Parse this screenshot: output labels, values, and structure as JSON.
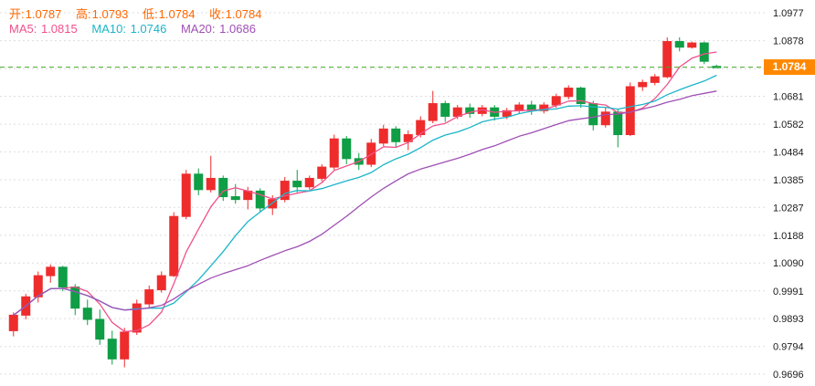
{
  "legend": {
    "open_label": "开:",
    "open_value": "1.0787",
    "high_label": "高:",
    "high_value": "1.0793",
    "low_label": "低:",
    "low_value": "1.0784",
    "close_label": "收:",
    "close_value": "1.0784"
  },
  "ma_legend": {
    "ma5_label": "MA5:",
    "ma5_value": "1.0815",
    "ma10_label": "MA10:",
    "ma10_value": "1.0746",
    "ma20_label": "MA20:",
    "ma20_value": "1.0686"
  },
  "price_badge": "1.0784",
  "chart_data": {
    "type": "candlestick",
    "title": "",
    "legend_position": "top-left",
    "grid": true,
    "x_axis": {
      "labels_visible": false
    },
    "y_axis": {
      "min": 0.9696,
      "max": 1.0977,
      "tick_labels": [
        "1.0977",
        "1.0878",
        "1.0779",
        "1.0681",
        "1.0582",
        "1.0484",
        "1.0385",
        "1.0287",
        "1.0188",
        "1.0090",
        "0.9991",
        "0.9893",
        "0.9794",
        "0.9696"
      ]
    },
    "current_price": 1.0784,
    "candles": {
      "format": "open-high-low-close",
      "ohlc": [
        [
          0.985,
          0.9915,
          0.983,
          0.9905
        ],
        [
          0.9905,
          0.998,
          0.989,
          0.997
        ],
        [
          0.997,
          1.006,
          0.995,
          1.0045
        ],
        [
          1.0045,
          1.0085,
          1.002,
          1.0075
        ],
        [
          1.0075,
          1.008,
          0.999,
          1.0005
        ],
        [
          1.0005,
          1.0015,
          0.9905,
          0.993
        ],
        [
          0.993,
          0.996,
          0.987,
          0.989
        ],
        [
          0.989,
          0.9925,
          0.98,
          0.982
        ],
        [
          0.982,
          0.985,
          0.973,
          0.975
        ],
        [
          0.975,
          0.986,
          0.972,
          0.9845
        ],
        [
          0.9845,
          0.996,
          0.9835,
          0.9945
        ],
        [
          0.9945,
          1.001,
          0.993,
          0.9995
        ],
        [
          0.9995,
          1.006,
          0.9985,
          1.0045
        ],
        [
          1.0045,
          1.027,
          1.004,
          1.0255
        ],
        [
          1.0255,
          1.042,
          1.0245,
          1.0405
        ],
        [
          1.0405,
          1.0425,
          1.033,
          1.035
        ],
        [
          1.035,
          1.047,
          1.034,
          1.039
        ],
        [
          1.039,
          1.04,
          1.031,
          1.0325
        ],
        [
          1.0325,
          1.037,
          1.03,
          1.0315
        ],
        [
          1.0315,
          1.036,
          1.028,
          1.0345
        ],
        [
          1.0345,
          1.0355,
          1.027,
          1.0285
        ],
        [
          1.0285,
          1.033,
          1.026,
          1.0315
        ],
        [
          1.0315,
          1.0395,
          1.0305,
          1.038
        ],
        [
          1.038,
          1.042,
          1.034,
          1.036
        ],
        [
          1.036,
          1.04,
          1.035,
          1.039
        ],
        [
          1.039,
          1.044,
          1.038,
          1.043
        ],
        [
          1.043,
          1.0545,
          1.042,
          1.053
        ],
        [
          1.053,
          1.054,
          1.044,
          1.046
        ],
        [
          1.046,
          1.048,
          1.042,
          1.044
        ],
        [
          1.044,
          1.053,
          1.043,
          1.0515
        ],
        [
          1.0515,
          1.058,
          1.0505,
          1.0565
        ],
        [
          1.0565,
          1.0575,
          1.05,
          1.052
        ],
        [
          1.052,
          1.056,
          1.049,
          1.0545
        ],
        [
          1.0545,
          1.061,
          1.0535,
          1.0595
        ],
        [
          1.0595,
          1.07,
          1.0585,
          1.0655
        ],
        [
          1.0655,
          1.0665,
          1.059,
          1.061
        ],
        [
          1.061,
          1.065,
          1.06,
          1.064
        ],
        [
          1.064,
          1.0655,
          1.0605,
          1.062
        ],
        [
          1.062,
          1.065,
          1.061,
          1.064
        ],
        [
          1.064,
          1.065,
          1.0595,
          1.061
        ],
        [
          1.061,
          1.064,
          1.06,
          1.063
        ],
        [
          1.063,
          1.066,
          1.062,
          1.065
        ],
        [
          1.065,
          1.0665,
          1.0615,
          1.063
        ],
        [
          1.063,
          1.066,
          1.062,
          1.065
        ],
        [
          1.065,
          1.069,
          1.064,
          1.068
        ],
        [
          1.068,
          1.072,
          1.067,
          1.071
        ],
        [
          1.071,
          1.0715,
          1.064,
          1.0655
        ],
        [
          1.0655,
          1.0665,
          1.056,
          1.058
        ],
        [
          1.058,
          1.064,
          1.057,
          1.0625
        ],
        [
          1.0625,
          1.0635,
          1.05,
          1.0545
        ],
        [
          1.0545,
          1.073,
          1.054,
          1.0715
        ],
        [
          1.0715,
          1.074,
          1.07,
          1.073
        ],
        [
          1.073,
          1.076,
          1.072,
          1.075
        ],
        [
          1.075,
          1.089,
          1.0745,
          1.0875
        ],
        [
          1.0875,
          1.089,
          1.084,
          1.0855
        ],
        [
          1.0855,
          1.0875,
          1.085,
          1.087
        ],
        [
          1.087,
          1.0875,
          1.0795,
          1.0805
        ],
        [
          1.0787,
          1.0793,
          1.0784,
          1.0784
        ]
      ]
    },
    "moving_averages": [
      {
        "name": "MA5",
        "period": 5,
        "last_value": 1.0815,
        "color": "#f0508a"
      },
      {
        "name": "MA10",
        "period": 10,
        "last_value": 1.0746,
        "color": "#1cb5c9"
      },
      {
        "name": "MA20",
        "period": 20,
        "last_value": 1.0686,
        "color": "#a04fb5"
      }
    ],
    "colors": {
      "up": "#ee2c2c",
      "down": "#0f9d45",
      "grid": "#dddddd",
      "axis_text": "#1a1a1a",
      "dashed_line": "#44aa22",
      "badge_bg": "#ff8800",
      "badge_text": "#ffffff",
      "legend_text": "#ff6600",
      "background": "#ffffff"
    }
  }
}
